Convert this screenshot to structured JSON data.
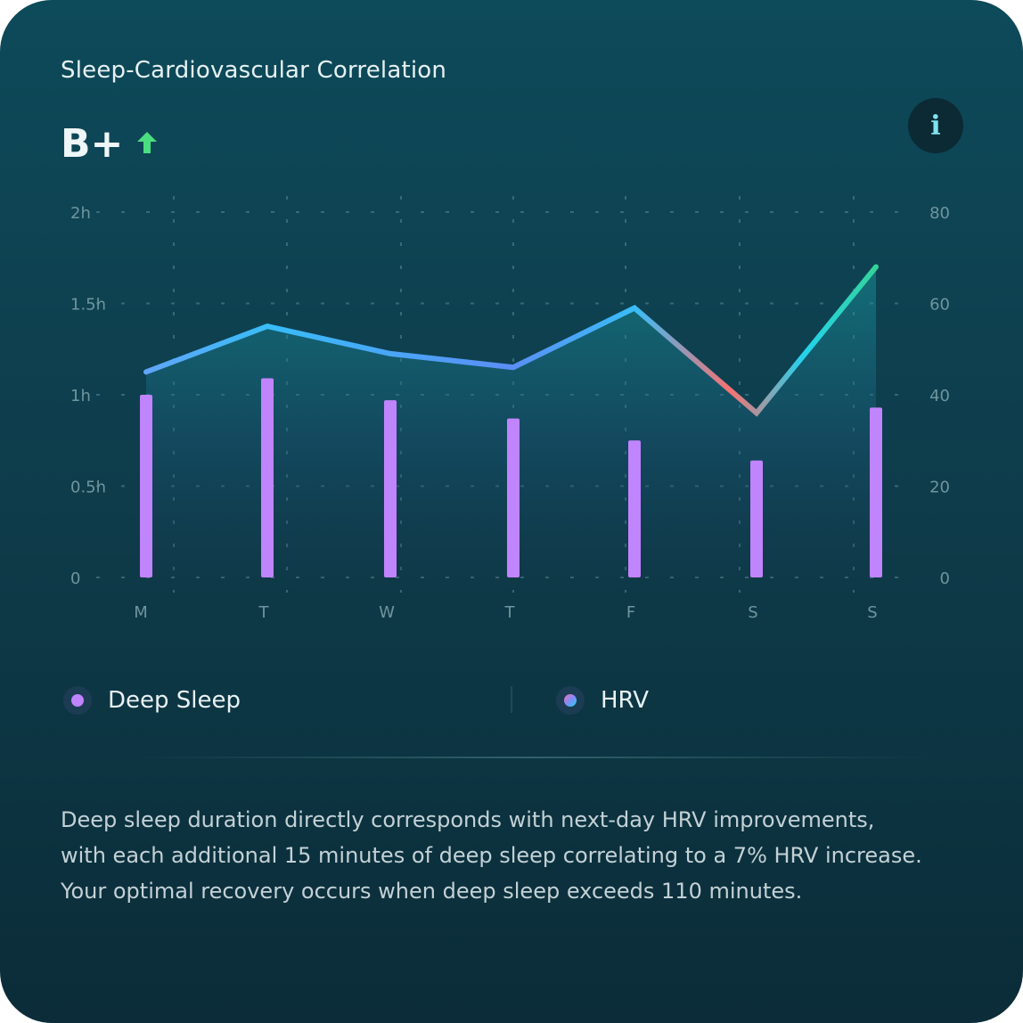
{
  "card": {
    "title": "Sleep-Cardiovascular Correlation",
    "grade": "B+",
    "trend_icon": "arrow-up-icon",
    "info_label": "i",
    "info_icon": "info-icon"
  },
  "legend": {
    "deep_sleep": "Deep Sleep",
    "hrv": "HRV"
  },
  "description": {
    "line1": "Deep sleep duration directly corresponds with next-day HRV improvements,",
    "line2": "with each additional 15 minutes of deep sleep correlating to a 7% HRV increase.",
    "line3": "Your optimal recovery occurs when deep sleep exceeds 110 minutes."
  },
  "colors": {
    "deep_sleep_bar": "#c084fc",
    "hrv_line_start": "#60a5fa",
    "hrv_line_mid": "#38bdf8",
    "hrv_line_low": "#f87171",
    "hrv_line_end": "#34d399",
    "trend_up": "#4ade80"
  },
  "chart_data": {
    "type": "bar",
    "categories": [
      "M",
      "T",
      "W",
      "T",
      "F",
      "S",
      "S"
    ],
    "y_left_ticks": [
      "0",
      "0.5h",
      "1h",
      "1.5h",
      "2h"
    ],
    "y_right_ticks": [
      "0",
      "20",
      "40",
      "60",
      "80"
    ],
    "y_left_lim": [
      0,
      2
    ],
    "y_right_lim": [
      0,
      80
    ],
    "series": [
      {
        "name": "Deep Sleep",
        "axis": "left",
        "type": "bar",
        "values": [
          1.0,
          1.09,
          0.97,
          0.87,
          0.75,
          0.64,
          0.93
        ]
      },
      {
        "name": "HRV",
        "axis": "right",
        "type": "area-line",
        "values": [
          45,
          55,
          49,
          46,
          59,
          36,
          68
        ]
      }
    ],
    "grid": true,
    "legend": "bottom"
  }
}
